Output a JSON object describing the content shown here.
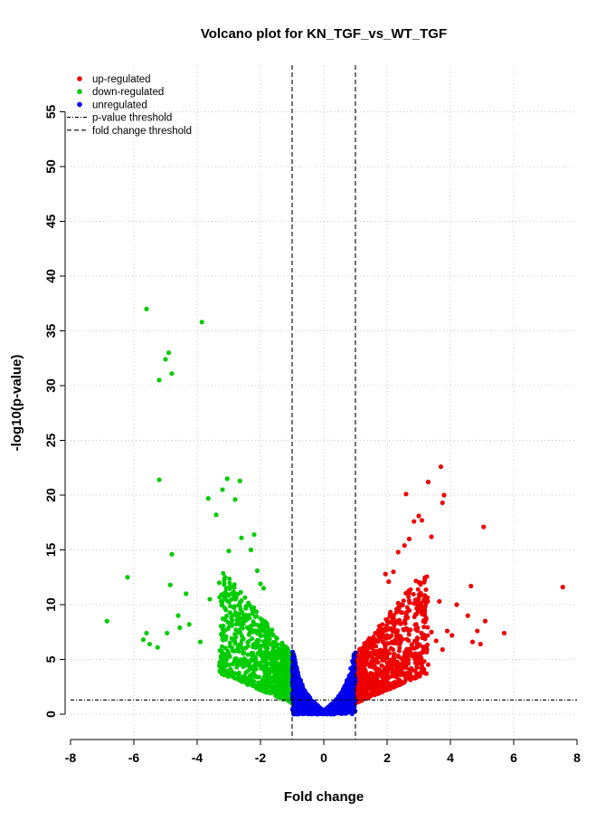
{
  "chart_data": {
    "type": "scatter",
    "title": "Volcano plot for  KN_TGF_vs_WT_TGF",
    "xlabel": "Fold change",
    "ylabel": "-log10(p-value)",
    "xlim": [
      -8,
      8
    ],
    "ylim": [
      0,
      58
    ],
    "x_ticks": [
      -8,
      -6,
      -4,
      -2,
      0,
      2,
      4,
      6,
      8
    ],
    "y_ticks": [
      0,
      5,
      10,
      15,
      20,
      25,
      30,
      35,
      40,
      45,
      50,
      55
    ],
    "grid": true,
    "legend_position": "top-left",
    "colors": {
      "up": "#ee0000",
      "down": "#00cc00",
      "unreg": "#0000ee",
      "lines": "#000000",
      "grid": "#c8c8c8"
    },
    "thresholds": {
      "pvalue_y": 1.3,
      "foldchange_x": [
        -1,
        1
      ]
    },
    "legend": [
      {
        "label": "up-regulated",
        "kind": "point",
        "color": "#ee0000"
      },
      {
        "label": "down-regulated",
        "kind": "point",
        "color": "#00cc00"
      },
      {
        "label": "unregulated",
        "kind": "point",
        "color": "#0000ee"
      },
      {
        "label": "p-value threshold",
        "kind": "line",
        "dash": "4,2,1,2"
      },
      {
        "label": "fold change threshold",
        "kind": "line",
        "dash": "5,3"
      }
    ],
    "series": [
      {
        "name": "up-regulated",
        "color": "#ee0000",
        "points": [
          [
            3.7,
            22.6
          ],
          [
            3.3,
            21.2
          ],
          [
            2.6,
            20.1
          ],
          [
            3.8,
            20.0
          ],
          [
            3.75,
            19.3
          ],
          [
            5.05,
            17.1
          ],
          [
            7.55,
            11.6
          ],
          [
            3.0,
            18.1
          ],
          [
            2.85,
            17.6
          ],
          [
            3.1,
            17.7
          ],
          [
            3.4,
            16.2
          ],
          [
            2.7,
            16.0
          ],
          [
            4.65,
            11.7
          ],
          [
            4.2,
            10.0
          ],
          [
            4.55,
            9.0
          ],
          [
            5.1,
            8.5
          ],
          [
            5.7,
            7.4
          ],
          [
            4.85,
            7.6
          ],
          [
            4.7,
            6.6
          ],
          [
            4.95,
            6.4
          ],
          [
            3.65,
            10.3
          ],
          [
            3.9,
            7.6
          ],
          [
            4.05,
            7.2
          ],
          [
            3.4,
            7.5
          ],
          [
            3.55,
            6.7
          ],
          [
            3.75,
            5.9
          ],
          [
            2.55,
            15.4
          ],
          [
            2.35,
            14.8
          ],
          [
            2.2,
            13.0
          ],
          [
            2.05,
            12.1
          ],
          [
            1.95,
            12.8
          ]
        ]
      },
      {
        "name": "down-regulated",
        "color": "#00cc00",
        "points": [
          [
            -5.6,
            37.0
          ],
          [
            -3.85,
            35.8
          ],
          [
            -4.9,
            33.0
          ],
          [
            -5.0,
            32.4
          ],
          [
            -4.8,
            31.1
          ],
          [
            -5.2,
            30.5
          ],
          [
            -5.2,
            21.4
          ],
          [
            -3.05,
            21.5
          ],
          [
            -2.65,
            21.3
          ],
          [
            -3.2,
            20.5
          ],
          [
            -3.65,
            19.7
          ],
          [
            -2.8,
            19.6
          ],
          [
            -3.4,
            18.2
          ],
          [
            -6.2,
            12.5
          ],
          [
            -6.85,
            8.5
          ],
          [
            -4.8,
            14.6
          ],
          [
            -4.85,
            11.8
          ],
          [
            -4.35,
            11.0
          ],
          [
            -5.6,
            7.4
          ],
          [
            -5.5,
            6.4
          ],
          [
            -5.7,
            6.8
          ],
          [
            -5.25,
            6.1
          ],
          [
            -4.95,
            7.4
          ],
          [
            -4.55,
            7.9
          ],
          [
            -4.6,
            9.0
          ],
          [
            -4.25,
            8.2
          ],
          [
            -3.9,
            6.6
          ],
          [
            -2.2,
            16.4
          ],
          [
            -2.3,
            15.0
          ],
          [
            -2.1,
            13.1
          ],
          [
            -2.0,
            11.9
          ],
          [
            -1.9,
            11.5
          ],
          [
            -3.0,
            14.9
          ],
          [
            -2.6,
            16.1
          ],
          [
            -3.3,
            12.0
          ],
          [
            -3.6,
            10.5
          ]
        ]
      }
    ],
    "dense_clusters": [
      {
        "name": "up-regulated",
        "color": "#ee0000",
        "x_range": [
          1.0,
          3.3
        ],
        "y_range": [
          1.0,
          13.0
        ],
        "count": 900
      },
      {
        "name": "down-regulated",
        "color": "#00cc00",
        "x_range": [
          -3.3,
          -1.0
        ],
        "y_range": [
          1.0,
          13.0
        ],
        "count": 900
      },
      {
        "name": "unregulated",
        "color": "#0000ee",
        "x_range": [
          -1.0,
          1.0
        ],
        "y_range": [
          0,
          6.0
        ],
        "count": 1200
      }
    ]
  }
}
